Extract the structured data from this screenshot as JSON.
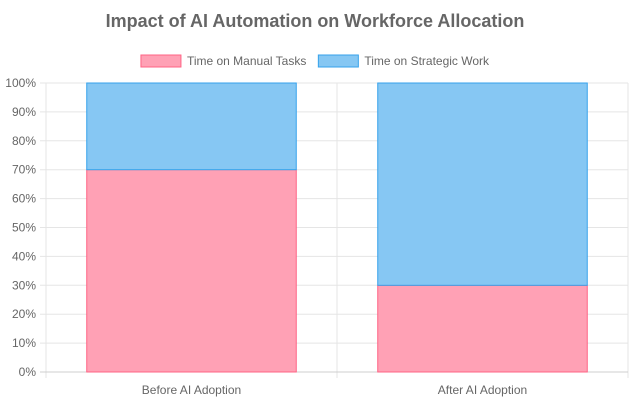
{
  "chart_data": {
    "type": "bar",
    "stacked": true,
    "title": "Impact of AI Automation on Workforce Allocation",
    "categories": [
      "Before AI Adoption",
      "After AI Adoption"
    ],
    "series": [
      {
        "name": "Time on Manual Tasks",
        "values": [
          70,
          30
        ],
        "fill": "#ffa1b5",
        "stroke": "#ff6384"
      },
      {
        "name": "Time on Strategic Work",
        "values": [
          30,
          70
        ],
        "fill": "#86c7f3",
        "stroke": "#36a2eb"
      }
    ],
    "ylim": [
      0,
      100
    ],
    "y_ticks": [
      "0%",
      "10%",
      "20%",
      "30%",
      "40%",
      "50%",
      "60%",
      "70%",
      "80%",
      "90%",
      "100%"
    ],
    "legend_position": "top",
    "grid": true,
    "colors": {
      "title": "#666666",
      "text": "#666666",
      "grid": "#e5e5e5"
    }
  }
}
